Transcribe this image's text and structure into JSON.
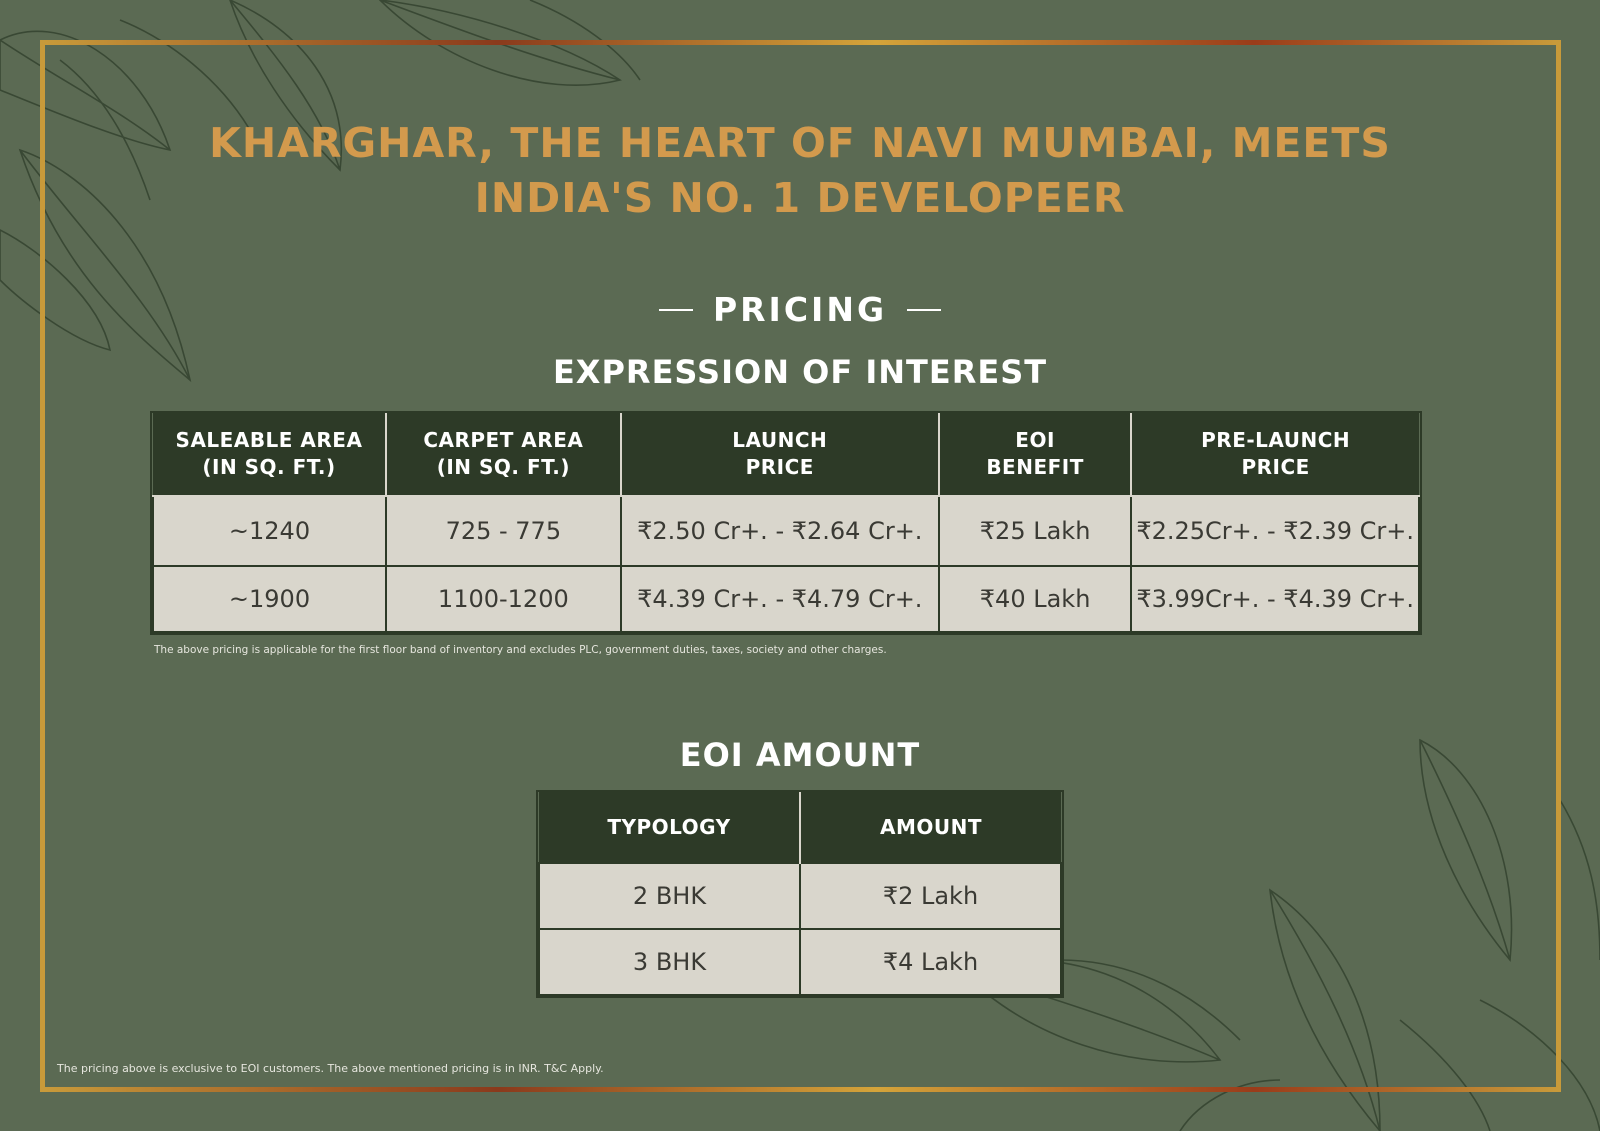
{
  "headline": {
    "line1": "KHARGHAR, THE HEART OF NAVI MUMBAI, MEETS",
    "line2": "INDIA'S NO. 1 DEVELOPEER"
  },
  "pricing": {
    "title": "PRICING",
    "subtitle": "EXPRESSION OF INTEREST",
    "columns": [
      {
        "line1": "SALEABLE AREA",
        "line2": "(IN SQ. FT.)"
      },
      {
        "line1": "CARPET AREA",
        "line2": "(IN SQ. FT.)"
      },
      {
        "line1": "LAUNCH",
        "line2": "PRICE"
      },
      {
        "line1": "EOI",
        "line2": "BENEFIT"
      },
      {
        "line1": "PRE-LAUNCH",
        "line2": "PRICE"
      }
    ],
    "rows": [
      [
        "~1240",
        "725 - 775",
        "₹2.50 Cr+. - ₹2.64 Cr+.",
        "₹25 Lakh",
        "₹2.25Cr+. - ₹2.39 Cr+."
      ],
      [
        "~1900",
        "1100-1200",
        "₹4.39 Cr+. - ₹4.79 Cr+.",
        "₹40 Lakh",
        "₹3.99Cr+. - ₹4.39 Cr+."
      ]
    ],
    "note": "The above pricing is applicable for the first floor band of inventory and excludes PLC, government duties, taxes, society and other charges."
  },
  "eoi_amount": {
    "title": "EOI AMOUNT",
    "columns": [
      "TYPOLOGY",
      "AMOUNT"
    ],
    "rows": [
      [
        "2 BHK",
        "₹2 Lakh"
      ],
      [
        "3 BHK",
        "₹4 Lakh"
      ]
    ]
  },
  "footer_note": "The pricing above is exclusive to EOI customers. The above mentioned pricing is in INR. T&C Apply.",
  "colors": {
    "background": "#5b6a53",
    "headline": "#d39a4d",
    "table_header": "#2d3a27",
    "table_cell": "#d9d6cc",
    "frame": "#b07a2c"
  }
}
